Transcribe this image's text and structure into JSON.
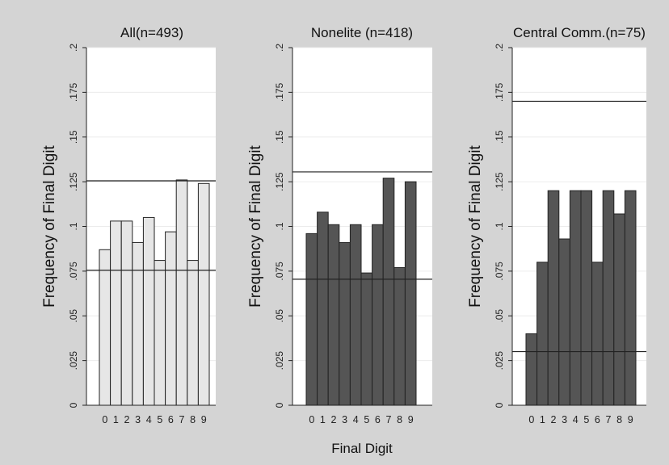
{
  "figure": {
    "xlabel": "Final Digit"
  },
  "chart_data": [
    {
      "type": "bar",
      "title": "All(n=493)",
      "ylabel": "Frequency of Final Digit",
      "xlabel": "",
      "categories": [
        "0",
        "1",
        "2",
        "3",
        "4",
        "5",
        "6",
        "7",
        "8",
        "9"
      ],
      "values": [
        0.087,
        0.103,
        0.103,
        0.091,
        0.105,
        0.081,
        0.097,
        0.126,
        0.081,
        0.124
      ],
      "ylim": [
        0,
        0.2
      ],
      "yticks": [
        0,
        0.025,
        0.05,
        0.075,
        0.1,
        0.125,
        0.15,
        0.175,
        0.2
      ],
      "ytick_labels": [
        "0",
        ".025",
        ".05",
        ".075",
        ".1",
        ".125",
        ".15",
        ".175",
        ".2"
      ],
      "reference_lines": [
        0.0755,
        0.1255
      ],
      "bar_color": "#e6e6e6",
      "grid": true
    },
    {
      "type": "bar",
      "title": "Nonelite (n=418)",
      "ylabel": "Frequency of Final Digit",
      "xlabel": "",
      "categories": [
        "0",
        "1",
        "2",
        "3",
        "4",
        "5",
        "6",
        "7",
        "8",
        "9"
      ],
      "values": [
        0.096,
        0.108,
        0.101,
        0.091,
        0.101,
        0.074,
        0.101,
        0.127,
        0.077,
        0.125
      ],
      "ylim": [
        0,
        0.2
      ],
      "yticks": [
        0,
        0.025,
        0.05,
        0.075,
        0.1,
        0.125,
        0.15,
        0.175,
        0.2
      ],
      "ytick_labels": [
        "0",
        ".025",
        ".05",
        ".075",
        ".1",
        ".125",
        ".15",
        ".175",
        ".2"
      ],
      "reference_lines": [
        0.0705,
        0.1305
      ],
      "bar_color": "#555555",
      "grid": true
    },
    {
      "type": "bar",
      "title": "Central Comm.(n=75)",
      "ylabel": "Frequency of Final Digit",
      "xlabel": "",
      "categories": [
        "0",
        "1",
        "2",
        "3",
        "4",
        "5",
        "6",
        "7",
        "8",
        "9"
      ],
      "values": [
        0.04,
        0.08,
        0.12,
        0.093,
        0.12,
        0.12,
        0.08,
        0.12,
        0.107,
        0.12
      ],
      "ylim": [
        0,
        0.2
      ],
      "yticks": [
        0,
        0.025,
        0.05,
        0.075,
        0.1,
        0.125,
        0.15,
        0.175,
        0.2
      ],
      "ytick_labels": [
        "0",
        ".025",
        ".05",
        ".075",
        ".1",
        ".125",
        ".15",
        ".175",
        ".2"
      ],
      "reference_lines": [
        0.03,
        0.17
      ],
      "bar_color": "#555555",
      "grid": true
    }
  ]
}
